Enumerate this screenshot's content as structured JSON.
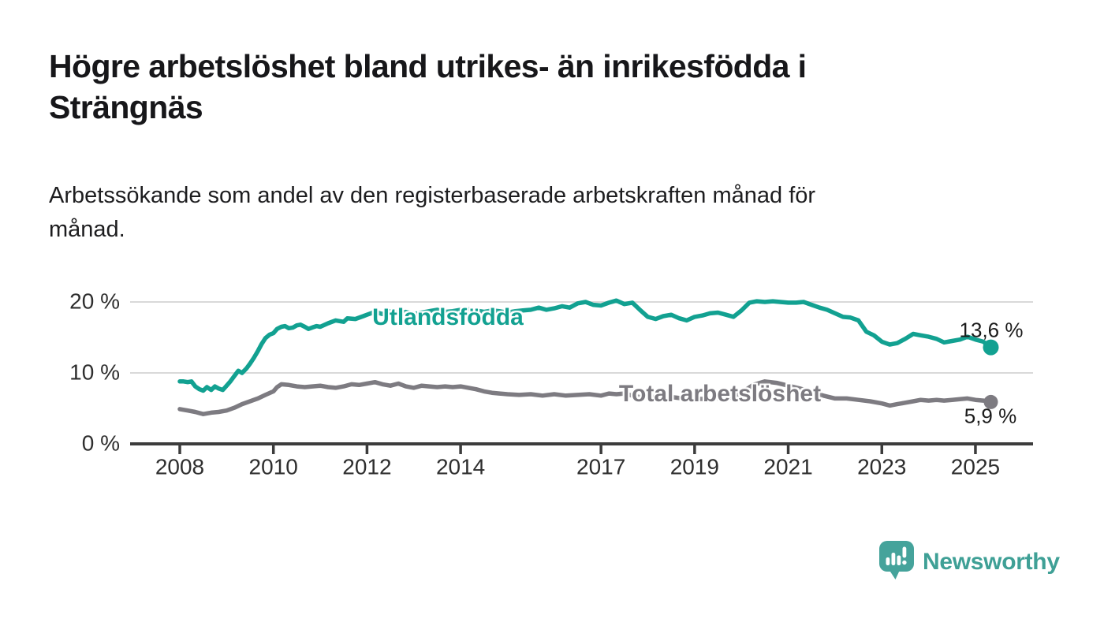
{
  "page": {
    "title_lines": [
      "Högre arbetslöshet bland utrikes- än inrikesfödda i",
      "Strängnäs"
    ],
    "subtitle_lines": [
      "Arbetssökande som andel av den registerbaserade arbetskraften månad för",
      "månad."
    ]
  },
  "branding": {
    "name": "Newsworthy",
    "icon": "speech-bubble-bar-chart-exclamation-icon",
    "icon_color": "#45a39b",
    "wordmark_color": "#3fa096"
  },
  "chart_data": {
    "type": "line",
    "title": "Högre arbetslöshet bland utrikes- än inrikesfödda i Strängnäs",
    "subtitle": "Arbetssökande som andel av den registerbaserade arbetskraften månad för månad.",
    "grid": "horizontal",
    "legend_position": "inline-labels",
    "x_axis": {
      "ticks": [
        2008,
        2010,
        2012,
        2014,
        2017,
        2019,
        2021,
        2023,
        2025
      ],
      "tick_labels": [
        "2008",
        "2010",
        "2012",
        "2014",
        "2017",
        "2019",
        "2021",
        "2023",
        "2025"
      ],
      "range": [
        2007.0,
        2026.2
      ]
    },
    "y_axis": {
      "unit": "%",
      "ticks": [
        {
          "value": 0,
          "label": "0 %"
        },
        {
          "value": 10,
          "label": "10 %"
        },
        {
          "value": 20,
          "label": "20 %"
        }
      ],
      "range": [
        0,
        22
      ]
    },
    "style": {
      "grid_color": "#d9d9d9",
      "axis_color": "#3c3c3c",
      "text_color": "#2e2e2e"
    },
    "series": [
      {
        "name": "Utlandsfödda",
        "color": "#12a191",
        "end_label": "13,6 %",
        "end_value": 13.6,
        "points": [
          [
            2008.0,
            8.8
          ],
          [
            2008.08,
            8.8
          ],
          [
            2008.17,
            8.7
          ],
          [
            2008.25,
            8.8
          ],
          [
            2008.33,
            8.1
          ],
          [
            2008.42,
            7.7
          ],
          [
            2008.5,
            7.5
          ],
          [
            2008.58,
            8.0
          ],
          [
            2008.67,
            7.6
          ],
          [
            2008.75,
            8.1
          ],
          [
            2008.83,
            7.8
          ],
          [
            2008.92,
            7.6
          ],
          [
            2009.0,
            8.2
          ],
          [
            2009.08,
            8.8
          ],
          [
            2009.17,
            9.6
          ],
          [
            2009.25,
            10.3
          ],
          [
            2009.33,
            10.0
          ],
          [
            2009.42,
            10.6
          ],
          [
            2009.5,
            11.3
          ],
          [
            2009.58,
            12.1
          ],
          [
            2009.67,
            13.1
          ],
          [
            2009.75,
            14.1
          ],
          [
            2009.83,
            14.9
          ],
          [
            2009.92,
            15.4
          ],
          [
            2010.0,
            15.6
          ],
          [
            2010.08,
            16.2
          ],
          [
            2010.17,
            16.5
          ],
          [
            2010.25,
            16.6
          ],
          [
            2010.33,
            16.3
          ],
          [
            2010.42,
            16.4
          ],
          [
            2010.5,
            16.7
          ],
          [
            2010.58,
            16.8
          ],
          [
            2010.67,
            16.5
          ],
          [
            2010.75,
            16.2
          ],
          [
            2010.83,
            16.4
          ],
          [
            2010.92,
            16.6
          ],
          [
            2011.0,
            16.5
          ],
          [
            2011.17,
            17.0
          ],
          [
            2011.33,
            17.4
          ],
          [
            2011.5,
            17.2
          ],
          [
            2011.58,
            17.7
          ],
          [
            2011.75,
            17.6
          ],
          [
            2011.92,
            18.0
          ],
          [
            2012.0,
            18.2
          ],
          [
            2012.17,
            18.6
          ],
          [
            2012.33,
            18.3
          ],
          [
            2012.5,
            18.7
          ],
          [
            2012.67,
            18.4
          ],
          [
            2012.83,
            18.6
          ],
          [
            2013.0,
            18.3
          ],
          [
            2013.17,
            18.5
          ],
          [
            2013.33,
            18.7
          ],
          [
            2013.5,
            18.9
          ],
          [
            2013.67,
            18.6
          ],
          [
            2013.83,
            18.7
          ],
          [
            2014.0,
            18.9
          ],
          [
            2014.17,
            19.0
          ],
          [
            2014.33,
            18.8
          ],
          [
            2014.5,
            18.6
          ],
          [
            2014.67,
            18.8
          ],
          [
            2014.83,
            18.7
          ],
          [
            2015.0,
            18.5
          ],
          [
            2015.17,
            18.7
          ],
          [
            2015.33,
            18.8
          ],
          [
            2015.5,
            18.9
          ],
          [
            2015.67,
            19.2
          ],
          [
            2015.83,
            18.9
          ],
          [
            2016.0,
            19.1
          ],
          [
            2016.17,
            19.4
          ],
          [
            2016.33,
            19.2
          ],
          [
            2016.5,
            19.8
          ],
          [
            2016.67,
            20.0
          ],
          [
            2016.83,
            19.6
          ],
          [
            2017.0,
            19.5
          ],
          [
            2017.17,
            19.9
          ],
          [
            2017.33,
            20.2
          ],
          [
            2017.5,
            19.7
          ],
          [
            2017.67,
            19.9
          ],
          [
            2017.83,
            18.9
          ],
          [
            2018.0,
            17.9
          ],
          [
            2018.17,
            17.6
          ],
          [
            2018.33,
            18.0
          ],
          [
            2018.5,
            18.2
          ],
          [
            2018.67,
            17.7
          ],
          [
            2018.83,
            17.4
          ],
          [
            2019.0,
            17.9
          ],
          [
            2019.17,
            18.1
          ],
          [
            2019.33,
            18.4
          ],
          [
            2019.5,
            18.5
          ],
          [
            2019.67,
            18.2
          ],
          [
            2019.83,
            17.9
          ],
          [
            2020.0,
            18.8
          ],
          [
            2020.17,
            19.9
          ],
          [
            2020.33,
            20.1
          ],
          [
            2020.5,
            20.0
          ],
          [
            2020.67,
            20.1
          ],
          [
            2020.83,
            20.0
          ],
          [
            2021.0,
            19.9
          ],
          [
            2021.17,
            19.9
          ],
          [
            2021.33,
            20.0
          ],
          [
            2021.5,
            19.6
          ],
          [
            2021.67,
            19.2
          ],
          [
            2021.83,
            18.9
          ],
          [
            2022.0,
            18.4
          ],
          [
            2022.17,
            17.9
          ],
          [
            2022.33,
            17.8
          ],
          [
            2022.5,
            17.4
          ],
          [
            2022.67,
            15.8
          ],
          [
            2022.83,
            15.3
          ],
          [
            2023.0,
            14.4
          ],
          [
            2023.17,
            14.0
          ],
          [
            2023.33,
            14.2
          ],
          [
            2023.5,
            14.8
          ],
          [
            2023.67,
            15.5
          ],
          [
            2023.83,
            15.3
          ],
          [
            2024.0,
            15.1
          ],
          [
            2024.17,
            14.8
          ],
          [
            2024.33,
            14.3
          ],
          [
            2024.5,
            14.5
          ],
          [
            2024.67,
            14.7
          ],
          [
            2024.83,
            15.1
          ],
          [
            2025.0,
            14.7
          ],
          [
            2025.17,
            14.4
          ],
          [
            2025.33,
            13.6
          ]
        ]
      },
      {
        "name": "Total arbetslöshet",
        "color": "#7d7b81",
        "end_label": "5,9 %",
        "end_value": 5.9,
        "points": [
          [
            2008.0,
            4.9
          ],
          [
            2008.17,
            4.7
          ],
          [
            2008.33,
            4.5
          ],
          [
            2008.5,
            4.2
          ],
          [
            2008.67,
            4.4
          ],
          [
            2008.83,
            4.5
          ],
          [
            2009.0,
            4.7
          ],
          [
            2009.17,
            5.1
          ],
          [
            2009.33,
            5.6
          ],
          [
            2009.5,
            6.0
          ],
          [
            2009.67,
            6.4
          ],
          [
            2009.83,
            6.9
          ],
          [
            2010.0,
            7.4
          ],
          [
            2010.08,
            8.0
          ],
          [
            2010.17,
            8.4
          ],
          [
            2010.33,
            8.3
          ],
          [
            2010.5,
            8.1
          ],
          [
            2010.67,
            8.0
          ],
          [
            2010.83,
            8.1
          ],
          [
            2011.0,
            8.2
          ],
          [
            2011.17,
            8.0
          ],
          [
            2011.33,
            7.9
          ],
          [
            2011.5,
            8.1
          ],
          [
            2011.67,
            8.4
          ],
          [
            2011.83,
            8.3
          ],
          [
            2012.0,
            8.5
          ],
          [
            2012.17,
            8.7
          ],
          [
            2012.33,
            8.4
          ],
          [
            2012.5,
            8.2
          ],
          [
            2012.67,
            8.5
          ],
          [
            2012.83,
            8.1
          ],
          [
            2013.0,
            7.9
          ],
          [
            2013.17,
            8.2
          ],
          [
            2013.33,
            8.1
          ],
          [
            2013.5,
            8.0
          ],
          [
            2013.67,
            8.1
          ],
          [
            2013.83,
            8.0
          ],
          [
            2014.0,
            8.1
          ],
          [
            2014.17,
            7.9
          ],
          [
            2014.33,
            7.7
          ],
          [
            2014.5,
            7.4
          ],
          [
            2014.67,
            7.2
          ],
          [
            2014.83,
            7.1
          ],
          [
            2015.0,
            7.0
          ],
          [
            2015.25,
            6.9
          ],
          [
            2015.5,
            7.0
          ],
          [
            2015.75,
            6.8
          ],
          [
            2016.0,
            7.0
          ],
          [
            2016.25,
            6.8
          ],
          [
            2016.5,
            6.9
          ],
          [
            2016.75,
            7.0
          ],
          [
            2017.0,
            6.8
          ],
          [
            2017.17,
            7.1
          ],
          [
            2017.33,
            7.0
          ],
          [
            2017.5,
            7.1
          ],
          [
            2017.67,
            6.8
          ],
          [
            2017.83,
            6.6
          ],
          [
            2018.0,
            6.7
          ],
          [
            2018.25,
            6.5
          ],
          [
            2018.5,
            6.6
          ],
          [
            2018.75,
            6.4
          ],
          [
            2019.0,
            6.4
          ],
          [
            2019.25,
            6.3
          ],
          [
            2019.5,
            6.4
          ],
          [
            2019.75,
            6.5
          ],
          [
            2020.0,
            7.2
          ],
          [
            2020.25,
            8.3
          ],
          [
            2020.5,
            8.8
          ],
          [
            2020.75,
            8.6
          ],
          [
            2021.0,
            8.2
          ],
          [
            2021.25,
            7.8
          ],
          [
            2021.5,
            7.3
          ],
          [
            2021.75,
            6.8
          ],
          [
            2022.0,
            6.4
          ],
          [
            2022.25,
            6.4
          ],
          [
            2022.5,
            6.2
          ],
          [
            2022.75,
            6.0
          ],
          [
            2023.0,
            5.7
          ],
          [
            2023.17,
            5.4
          ],
          [
            2023.33,
            5.6
          ],
          [
            2023.5,
            5.8
          ],
          [
            2023.67,
            6.0
          ],
          [
            2023.83,
            6.2
          ],
          [
            2024.0,
            6.1
          ],
          [
            2024.17,
            6.2
          ],
          [
            2024.33,
            6.1
          ],
          [
            2024.5,
            6.2
          ],
          [
            2024.67,
            6.3
          ],
          [
            2024.83,
            6.4
          ],
          [
            2025.0,
            6.2
          ],
          [
            2025.17,
            6.1
          ],
          [
            2025.33,
            5.9
          ]
        ]
      }
    ]
  }
}
